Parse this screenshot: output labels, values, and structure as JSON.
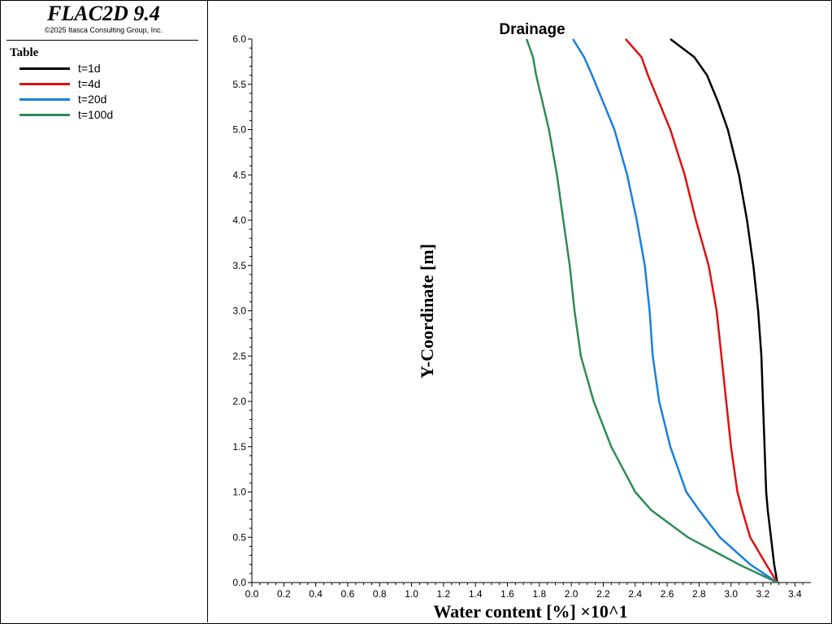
{
  "app": {
    "title": "FLAC2D 9.4",
    "copyright": "©2025 Itasca Consulting Group, Inc."
  },
  "legend": {
    "title": "Table"
  },
  "chart_data": {
    "type": "line",
    "title": "Drainage",
    "xlabel": "Water content [%] ×10^1",
    "ylabel": "Y-Coordinate [m]",
    "xlim": [
      0,
      3.5
    ],
    "ylim": [
      0,
      6
    ],
    "xticks": [
      "0.0",
      "0.2",
      "0.4",
      "0.6",
      "0.8",
      "1.0",
      "1.2",
      "1.4",
      "1.6",
      "1.8",
      "2.0",
      "2.2",
      "2.4",
      "2.6",
      "2.8",
      "3.0",
      "3.2",
      "3.4"
    ],
    "yticks": [
      "0.0",
      "0.5",
      "1.0",
      "1.5",
      "2.0",
      "2.5",
      "3.0",
      "3.5",
      "4.0",
      "4.5",
      "5.0",
      "5.5",
      "6.0"
    ],
    "legend_position": "left panel",
    "grid": false,
    "series": [
      {
        "name": "t=1d",
        "color": "#000000",
        "points": [
          [
            3.29,
            0.0
          ],
          [
            3.27,
            0.2
          ],
          [
            3.25,
            0.5
          ],
          [
            3.23,
            0.8
          ],
          [
            3.22,
            1.0
          ],
          [
            3.21,
            1.5
          ],
          [
            3.2,
            2.0
          ],
          [
            3.19,
            2.5
          ],
          [
            3.17,
            3.0
          ],
          [
            3.14,
            3.5
          ],
          [
            3.1,
            4.0
          ],
          [
            3.05,
            4.5
          ],
          [
            2.98,
            5.0
          ],
          [
            2.92,
            5.3
          ],
          [
            2.85,
            5.6
          ],
          [
            2.77,
            5.8
          ],
          [
            2.62,
            6.0
          ]
        ]
      },
      {
        "name": "t=4d",
        "color": "#e01010",
        "points": [
          [
            3.29,
            0.0
          ],
          [
            3.22,
            0.2
          ],
          [
            3.12,
            0.5
          ],
          [
            3.07,
            0.8
          ],
          [
            3.04,
            1.0
          ],
          [
            3.0,
            1.5
          ],
          [
            2.97,
            2.0
          ],
          [
            2.94,
            2.5
          ],
          [
            2.91,
            3.0
          ],
          [
            2.86,
            3.5
          ],
          [
            2.78,
            4.0
          ],
          [
            2.71,
            4.5
          ],
          [
            2.62,
            5.0
          ],
          [
            2.55,
            5.3
          ],
          [
            2.48,
            5.6
          ],
          [
            2.44,
            5.8
          ],
          [
            2.34,
            6.0
          ]
        ]
      },
      {
        "name": "t=20d",
        "color": "#1a7fe0",
        "points": [
          [
            3.29,
            0.0
          ],
          [
            3.12,
            0.2
          ],
          [
            2.93,
            0.5
          ],
          [
            2.8,
            0.8
          ],
          [
            2.72,
            1.0
          ],
          [
            2.62,
            1.5
          ],
          [
            2.55,
            2.0
          ],
          [
            2.51,
            2.5
          ],
          [
            2.49,
            3.0
          ],
          [
            2.46,
            3.5
          ],
          [
            2.41,
            4.0
          ],
          [
            2.35,
            4.5
          ],
          [
            2.27,
            5.0
          ],
          [
            2.2,
            5.3
          ],
          [
            2.13,
            5.6
          ],
          [
            2.08,
            5.8
          ],
          [
            2.01,
            6.0
          ]
        ]
      },
      {
        "name": "t=100d",
        "color": "#2e8b57",
        "points": [
          [
            3.29,
            0.0
          ],
          [
            3.05,
            0.2
          ],
          [
            2.73,
            0.5
          ],
          [
            2.5,
            0.8
          ],
          [
            2.4,
            1.0
          ],
          [
            2.25,
            1.5
          ],
          [
            2.14,
            2.0
          ],
          [
            2.06,
            2.5
          ],
          [
            2.02,
            3.0
          ],
          [
            1.99,
            3.5
          ],
          [
            1.95,
            4.0
          ],
          [
            1.91,
            4.5
          ],
          [
            1.86,
            5.0
          ],
          [
            1.82,
            5.3
          ],
          [
            1.78,
            5.6
          ],
          [
            1.76,
            5.8
          ],
          [
            1.72,
            6.0
          ]
        ]
      }
    ]
  }
}
